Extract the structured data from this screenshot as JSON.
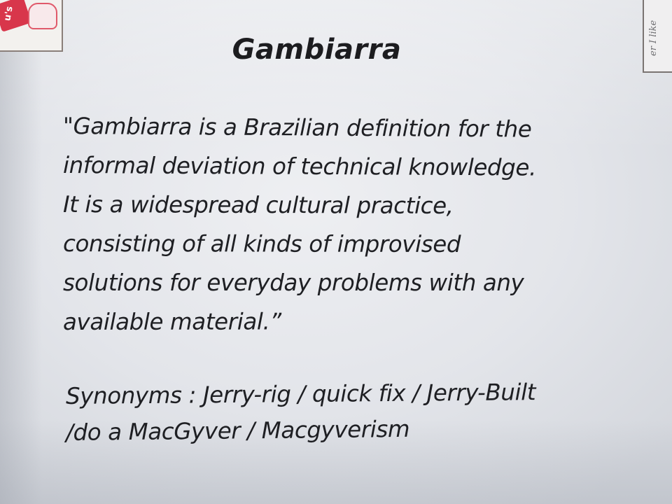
{
  "title": "Gambiarra",
  "definition_lines": [
    "\"Gambiarra is a Brazilian definition for the",
    "informal deviation of technical knowledge.",
    "It is a widespread cultural practice,",
    "consisting of all kinds of improvised",
    "solutions for everyday problems with any",
    "available material.”"
  ],
  "synonyms_lines": [
    "Synonyms : Jerry-rig / quick fix / Jerry-Built",
    "/do a MacGyver / Macgyverism"
  ],
  "top_left_card": {
    "logo_text": "u's"
  },
  "top_right_card": {
    "side_text": "er I like"
  },
  "colors": {
    "text": "#1e1f23",
    "paper": "#e3e5ea",
    "logo_red": "#d8364b"
  }
}
